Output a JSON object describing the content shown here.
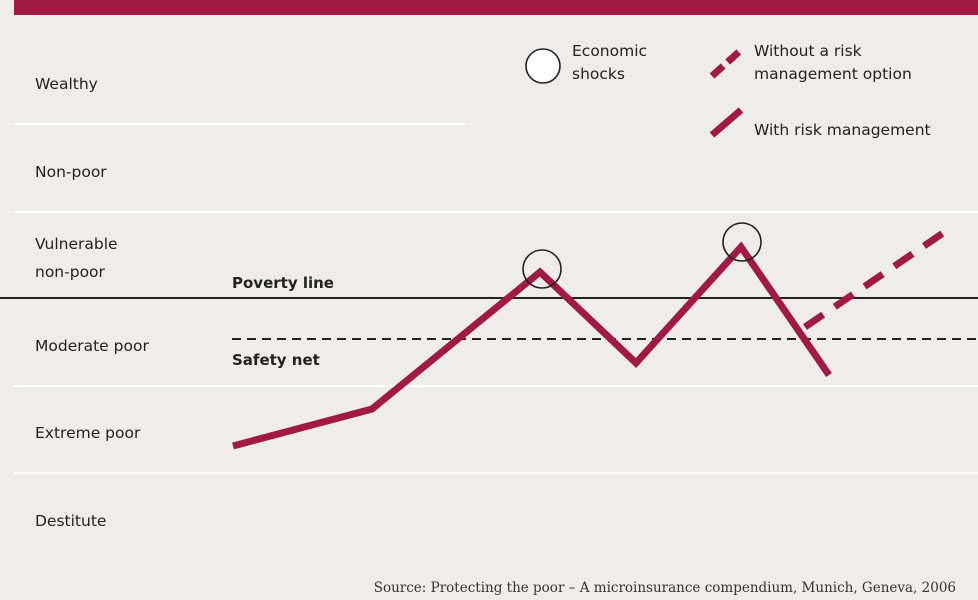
{
  "bands": [
    {
      "label": "Wealthy"
    },
    {
      "label": "Non-poor"
    },
    {
      "label": "Vulnerable\nnon-poor"
    },
    {
      "label": "Moderate poor"
    },
    {
      "label": "Extreme poor"
    },
    {
      "label": "Destitute"
    }
  ],
  "lines": {
    "poverty_label": "Poverty line",
    "safety_label": "Safety net"
  },
  "legend": {
    "shocks": "Economic\nshocks",
    "without": "Without a risk\nmanagement option",
    "with": "With risk management"
  },
  "source": "Source: Protecting the poor – A microinsurance compendium, Munich, Geneva, 2006",
  "colors": {
    "accent": "#a01a45",
    "background": "#eeedeb",
    "band_divider": "#ffffff",
    "line": "#222222"
  }
}
